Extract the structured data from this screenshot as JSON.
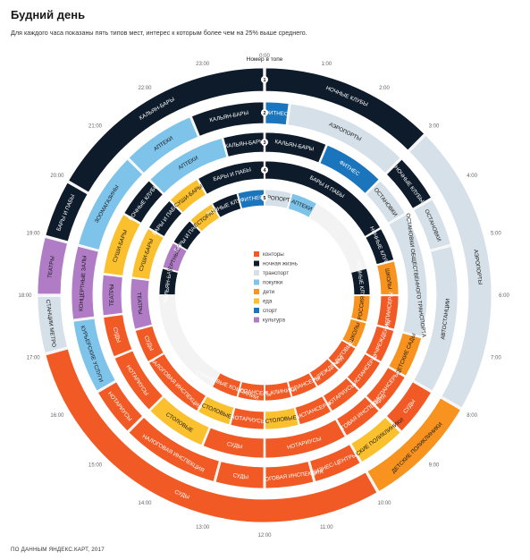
{
  "title": "Будний день",
  "subtitle": "Для каждого часа показаны пять типов мест, интерес к которым более чем на 25% выше среднего.",
  "footer": "ПО ДАННЫМ ЯНДЕКС.КАРТ, 2017",
  "top_label": "Номер в топе",
  "colors": {
    "офис": "#f15a24",
    "ночь": "#0d1b2a",
    "транспорт": "#d5e0e8",
    "покупки": "#7ec3ea",
    "дети": "#f7931e",
    "еда": "#fbc02d",
    "спорт": "#1b75bc",
    "культура": "#b07cc6"
  },
  "chart_data": {
    "type": "radial",
    "hours": [
      "0:00",
      "1:00",
      "2:00",
      "3:00",
      "4:00",
      "5:00",
      "6:00",
      "7:00",
      "8:00",
      "9:00",
      "10:00",
      "11:00",
      "12:00",
      "13:00",
      "14:00",
      "15:00",
      "16:00",
      "17:00",
      "18:00",
      "19:00",
      "20:00",
      "21:00",
      "22:00",
      "23:00"
    ],
    "ring_numbers": [
      "1",
      "2",
      "3",
      "4",
      "5"
    ],
    "legend": [
      {
        "key": "офис",
        "label": "конторы"
      },
      {
        "key": "ночь",
        "label": "ночная жизнь"
      },
      {
        "key": "транспорт",
        "label": "транспорт"
      },
      {
        "key": "покупки",
        "label": "покупки"
      },
      {
        "key": "дети",
        "label": "дети"
      },
      {
        "key": "еда",
        "label": "еда"
      },
      {
        "key": "спорт",
        "label": "спорт"
      },
      {
        "key": "культура",
        "label": "культура"
      }
    ],
    "rings": [
      {
        "rank": 1,
        "segments": [
          {
            "from": 0,
            "to": 3,
            "cat": "ночь",
            "label": "НОЧНЫЕ КЛУБЫ"
          },
          {
            "from": 3,
            "to": 8,
            "cat": "транспорт",
            "label": "АЭРОПОРТЫ"
          },
          {
            "from": 8,
            "to": 10,
            "cat": "дети",
            "label": "ДЕТСКИЕ ПОЛИКЛИНИКИ"
          },
          {
            "from": 10,
            "to": 17,
            "cat": "офис",
            "label": "СУДЫ"
          },
          {
            "from": 17,
            "to": 18,
            "cat": "транспорт",
            "label": "СТАНЦИИ МЕТРО"
          },
          {
            "from": 18,
            "to": 19,
            "cat": "культура",
            "label": "ТЕАТРЫ"
          },
          {
            "from": 19,
            "to": 20,
            "cat": "ночь",
            "label": "БАРЫ И ПАБЫ"
          },
          {
            "from": 20,
            "to": 24,
            "cat": "ночь",
            "label": "КАЛЬЯН-БАРЫ"
          }
        ]
      },
      {
        "rank": 2,
        "segments": [
          {
            "from": 0,
            "to": 0.5,
            "cat": "спорт",
            "label": "ФИТНЕС"
          },
          {
            "from": 0.5,
            "to": 3,
            "cat": "транспорт",
            "label": "АЭРОПОРТЫ"
          },
          {
            "from": 3,
            "to": 4,
            "cat": "ночь",
            "label": "НОЧНЫЕ КЛУБЫ"
          },
          {
            "from": 4,
            "to": 5,
            "cat": "транспорт",
            "label": "ОСТАНОВКИ"
          },
          {
            "from": 5,
            "to": 8,
            "cat": "транспорт",
            "label": "АВТОСТАНЦИИ"
          },
          {
            "from": 8,
            "to": 9,
            "cat": "офис",
            "label": "СУДЫ"
          },
          {
            "from": 9,
            "to": 10,
            "cat": "еда",
            "label": "ДЕТСКИЕ ПОЛИКЛИНИКИ"
          },
          {
            "from": 10,
            "to": 11,
            "cat": "офис",
            "label": "БИЗНЕС-ЦЕНТРЫ"
          },
          {
            "from": 11,
            "to": 12,
            "cat": "офис",
            "label": "НАЛОГОВАЯ ИНСПЕКЦИЯ"
          },
          {
            "from": 12,
            "to": 13,
            "cat": "офис",
            "label": "СУДЫ"
          },
          {
            "from": 13,
            "to": 15,
            "cat": "офис",
            "label": "НАЛОГОВАЯ ИНСПЕКЦИЯ"
          },
          {
            "from": 15,
            "to": 16,
            "cat": "офис",
            "label": "НОТАРИУСЫ"
          },
          {
            "from": 16,
            "to": 17.5,
            "cat": "покупки",
            "label": "КУРЬЕРСКИЕ УСЛУГИ"
          },
          {
            "from": 17.5,
            "to": 19,
            "cat": "культура",
            "label": "КОНЦЕРТНЫЕ ЗАЛЫ"
          },
          {
            "from": 19,
            "to": 21,
            "cat": "покупки",
            "label": "ЗООМАГАЗИНЫ"
          },
          {
            "from": 21,
            "to": 22.5,
            "cat": "покупки",
            "label": "АПТЕКИ"
          },
          {
            "from": 22.5,
            "to": 24,
            "cat": "ночь",
            "label": "КАЛЬЯН-БАРЫ"
          }
        ]
      },
      {
        "rank": 3,
        "segments": [
          {
            "from": 0,
            "to": 1.5,
            "cat": "ночь",
            "label": "КАЛЬЯН-БАРЫ"
          },
          {
            "from": 1.5,
            "to": 3,
            "cat": "спорт",
            "label": "ФИТНЕС"
          },
          {
            "from": 3,
            "to": 4,
            "cat": "транспорт",
            "label": "ОСТАНОВКИ"
          },
          {
            "from": 4,
            "to": 7,
            "cat": "транспорт",
            "label": "ОСТАНОВКИ ОБЩЕСТВЕННОГО ТРАНСПОРТА"
          },
          {
            "from": 7,
            "to": 8,
            "cat": "дети",
            "label": "ДЕТСКИЕ САДЫ"
          },
          {
            "from": 8,
            "to": 9,
            "cat": "офис",
            "label": "ДИСПАНСЕРЫ"
          },
          {
            "from": 9,
            "to": 10,
            "cat": "офис",
            "label": "НАЛОГОВАЯ ИНСПЕКЦИЯ"
          },
          {
            "from": 10,
            "to": 12,
            "cat": "офис",
            "label": "НОТАРИУСЫ"
          },
          {
            "from": 12,
            "to": 13.5,
            "cat": "офис",
            "label": "СУДЫ"
          },
          {
            "from": 13.5,
            "to": 15,
            "cat": "еда",
            "label": "СТОЛОВЫЕ"
          },
          {
            "from": 15,
            "to": 16.5,
            "cat": "офис",
            "label": "НОТАРИУСЫ"
          },
          {
            "from": 16.5,
            "to": 17.5,
            "cat": "офис",
            "label": "СУДЫ"
          },
          {
            "from": 17.5,
            "to": 18.5,
            "cat": "культура",
            "label": "ТЕАТРЫ"
          },
          {
            "from": 18.5,
            "to": 20,
            "cat": "еда",
            "label": "СУШИ-БАРЫ"
          },
          {
            "from": 20,
            "to": 21,
            "cat": "ночь",
            "label": "НОЧНЫЕ КЛУБЫ"
          },
          {
            "from": 21,
            "to": 23,
            "cat": "покупки",
            "label": "АПТЕКИ"
          },
          {
            "from": 23,
            "to": 24,
            "cat": "ночь",
            "label": "КАЛЬЯН-БАРЫ"
          }
        ]
      },
      {
        "rank": 4,
        "segments": [
          {
            "from": 0,
            "to": 4,
            "cat": "ночь",
            "label": "БАРЫ И ПАБЫ"
          },
          {
            "from": 4,
            "to": 5,
            "cat": "ночь",
            "label": "НОЧНЫЕ КЛУБЫ"
          },
          {
            "from": 5,
            "to": 6,
            "cat": "дети",
            "label": "ШКОЛЫ"
          },
          {
            "from": 6,
            "to": 7,
            "cat": "офис",
            "label": "ДИСПАНСЕРЫ"
          },
          {
            "from": 7,
            "to": 8,
            "cat": "офис",
            "label": "ГОСУЧРЕЖДЕНИЯ"
          },
          {
            "from": 8,
            "to": 9,
            "cat": "офис",
            "label": "ДИСПАНСЕРЫ"
          },
          {
            "from": 9,
            "to": 10,
            "cat": "офис",
            "label": "НОТАРИУСЫ"
          },
          {
            "from": 10,
            "to": 11,
            "cat": "офис",
            "label": "ДИСПАНСЕРЫ"
          },
          {
            "from": 11,
            "to": 12,
            "cat": "еда",
            "label": "СТОЛОВЫЕ"
          },
          {
            "from": 12,
            "to": 13,
            "cat": "офис",
            "label": "НОТАРИУСЫ"
          },
          {
            "from": 13,
            "to": 14,
            "cat": "еда",
            "label": "СТОЛОВЫЕ"
          },
          {
            "from": 14,
            "to": 16,
            "cat": "офис",
            "label": "НАЛОГОВАЯ ИНСПЕКЦИЯ"
          },
          {
            "from": 16,
            "to": 17,
            "cat": "офис",
            "label": "СУДЫ"
          },
          {
            "from": 17,
            "to": 18.5,
            "cat": "культура",
            "label": "ТЕАТРЫ"
          },
          {
            "from": 18.5,
            "to": 20,
            "cat": "еда",
            "label": "СУШИ-БАРЫ"
          },
          {
            "from": 20,
            "to": 21,
            "cat": "ночь",
            "label": "БАРЫ И ПАБЫ"
          },
          {
            "from": 21,
            "to": 22,
            "cat": "еда",
            "label": "СУШИ-БАРЫ"
          },
          {
            "from": 22,
            "to": 24,
            "cat": "ночь",
            "label": "БАРЫ И ПАБЫ"
          }
        ]
      },
      {
        "rank": 5,
        "segments": [
          {
            "from": 0,
            "to": 1,
            "cat": "транспорт",
            "label": "АЭРОПОРТЫ"
          },
          {
            "from": 1,
            "to": 2,
            "cat": "покупки",
            "label": "АПТЕКИ"
          },
          {
            "from": 2,
            "to": 5,
            "cat": "",
            "label": ""
          },
          {
            "from": 5,
            "to": 6,
            "cat": "ночь",
            "label": "НОЧНЫЕ КЛУБЫ"
          },
          {
            "from": 6,
            "to": 7,
            "cat": "дети",
            "label": "РОССИЯ"
          },
          {
            "from": 7,
            "to": 8,
            "cat": "дети",
            "label": "ШКОЛЫ"
          },
          {
            "from": 8,
            "to": 9,
            "cat": "офис",
            "label": "НАЛОГОВЫЕ"
          },
          {
            "from": 9,
            "to": 10,
            "cat": "офис",
            "label": "ГОСУЧРЕЖДЕНИЯ"
          },
          {
            "from": 10,
            "to": 11,
            "cat": "офис",
            "label": "ДИСПАНСЕРЫ"
          },
          {
            "from": 11,
            "to": 12,
            "cat": "офис",
            "label": "ДЕТ. КЛИНИКИ"
          },
          {
            "from": 12,
            "to": 13,
            "cat": "офис",
            "label": "ДИСПАНСЕРЫ"
          },
          {
            "from": 13,
            "to": 14,
            "cat": "офис",
            "label": "СТРАХОВЫЕ КОМПАНИИ"
          },
          {
            "from": 14,
            "to": 18,
            "cat": "",
            "label": ""
          },
          {
            "from": 18,
            "to": 19,
            "cat": "ночь",
            "label": "КАЛЬЯН-БАРЫ"
          },
          {
            "from": 19,
            "to": 20,
            "cat": "культура",
            "label": "КОНЦЕРТНЫЕ ЗАЛЫ"
          },
          {
            "from": 20,
            "to": 21,
            "cat": "ночь",
            "label": "БАРЫ И ПАБЫ"
          },
          {
            "from": 21,
            "to": 22,
            "cat": "еда",
            "label": "РЕСТОРАНЫ"
          },
          {
            "from": 22,
            "to": 23,
            "cat": "ночь",
            "label": "НОЧНЫЕ КЛУБЫ"
          },
          {
            "from": 23,
            "to": 24,
            "cat": "спорт",
            "label": "ФИТНЕС"
          }
        ]
      }
    ]
  }
}
